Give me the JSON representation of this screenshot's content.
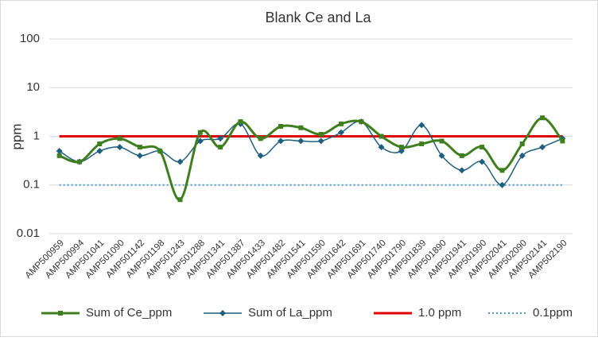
{
  "chart_data": {
    "type": "line",
    "title": "Blank Ce and La",
    "y_label": "ppm",
    "yscale": "log",
    "ylim": [
      0.01,
      100
    ],
    "yticks": [
      0.01,
      0.1,
      1,
      10,
      100
    ],
    "grid": true,
    "smooth": true,
    "legend": "bottom",
    "categories": [
      "AMP500959",
      "AMP500994",
      "AMP501041",
      "AMP501090",
      "AMP501142",
      "AMP501198",
      "AMP501243",
      "AMP501288",
      "AMP501341",
      "AMP501387",
      "AMP501433",
      "AMP501482",
      "AMP501541",
      "AMP501590",
      "AMP501642",
      "AMP501691",
      "AMP501740",
      "AMP501790",
      "AMP501839",
      "AMP501890",
      "AMP501941",
      "AMP501990",
      "AMP502041",
      "AMP502090",
      "AMP502141",
      "AMP502190"
    ],
    "series": [
      {
        "name": "Sum of Ce_ppm",
        "color": "#3f7f1f",
        "marker": "square",
        "values": [
          0.4,
          0.3,
          0.7,
          0.9,
          0.6,
          0.5,
          0.05,
          1.2,
          0.6,
          2.0,
          0.9,
          1.6,
          1.5,
          1.1,
          1.8,
          2.0,
          1.0,
          0.6,
          0.7,
          0.8,
          0.4,
          0.6,
          0.2,
          0.7,
          2.4,
          0.8
        ]
      },
      {
        "name": "Sum of La_ppm",
        "color": "#1f5f7f",
        "marker": "diamond",
        "values": [
          0.5,
          0.3,
          0.5,
          0.6,
          0.4,
          0.5,
          0.3,
          0.8,
          0.9,
          1.8,
          0.4,
          0.8,
          0.8,
          0.8,
          1.2,
          2.0,
          0.6,
          0.5,
          1.7,
          0.4,
          0.2,
          0.3,
          0.1,
          0.4,
          0.6,
          0.9
        ]
      },
      {
        "name": "1.0 ppm",
        "color": "#e00000",
        "style": "solid",
        "values": [
          1,
          1,
          1,
          1,
          1,
          1,
          1,
          1,
          1,
          1,
          1,
          1,
          1,
          1,
          1,
          1,
          1,
          1,
          1,
          1,
          1,
          1,
          1,
          1,
          1,
          1
        ]
      },
      {
        "name": "0.1ppm",
        "color": "#4d9bc7",
        "style": "dotted",
        "values": [
          0.1,
          0.1,
          0.1,
          0.1,
          0.1,
          0.1,
          0.1,
          0.1,
          0.1,
          0.1,
          0.1,
          0.1,
          0.1,
          0.1,
          0.1,
          0.1,
          0.1,
          0.1,
          0.1,
          0.1,
          0.1,
          0.1,
          0.1,
          0.1,
          0.1,
          0.1
        ]
      }
    ]
  }
}
